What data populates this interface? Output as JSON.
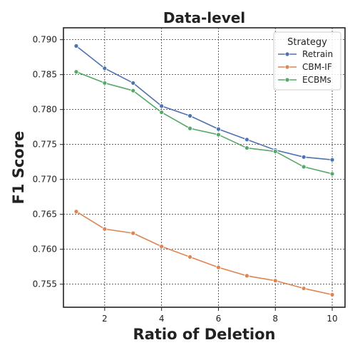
{
  "chart_data": {
    "type": "line",
    "title": "Data-level",
    "xlabel": "Ratio of Deletion",
    "ylabel": "F1 Score",
    "x": [
      1,
      2,
      3,
      4,
      5,
      6,
      7,
      8,
      9,
      10
    ],
    "xticks": [
      2,
      4,
      6,
      8,
      10
    ],
    "yticks": [
      0.755,
      0.76,
      0.765,
      0.77,
      0.775,
      0.78,
      0.785,
      0.79
    ],
    "ytick_labels": [
      "0.755",
      "0.760",
      "0.765",
      "0.770",
      "0.775",
      "0.780",
      "0.785",
      "0.790"
    ],
    "xlim": [
      0.55,
      10.45
    ],
    "ylim": [
      0.7517,
      0.7917
    ],
    "grid": true,
    "legend": {
      "title": "Strategy",
      "placement": "top-right"
    },
    "series": [
      {
        "name": "Retrain",
        "color": "#4c72b0",
        "values": [
          0.7891,
          0.7859,
          0.7838,
          0.7805,
          0.7791,
          0.7772,
          0.7757,
          0.7742,
          0.7732,
          0.7728
        ]
      },
      {
        "name": "CBM-IF",
        "color": "#dd8452",
        "values": [
          0.7654,
          0.7629,
          0.7623,
          0.7604,
          0.7589,
          0.7574,
          0.7562,
          0.7555,
          0.7544,
          0.7535
        ]
      },
      {
        "name": "ECBMs",
        "color": "#55a868",
        "values": [
          0.7854,
          0.7838,
          0.7827,
          0.7796,
          0.7773,
          0.7764,
          0.7745,
          0.774,
          0.7718,
          0.7708
        ]
      }
    ]
  }
}
